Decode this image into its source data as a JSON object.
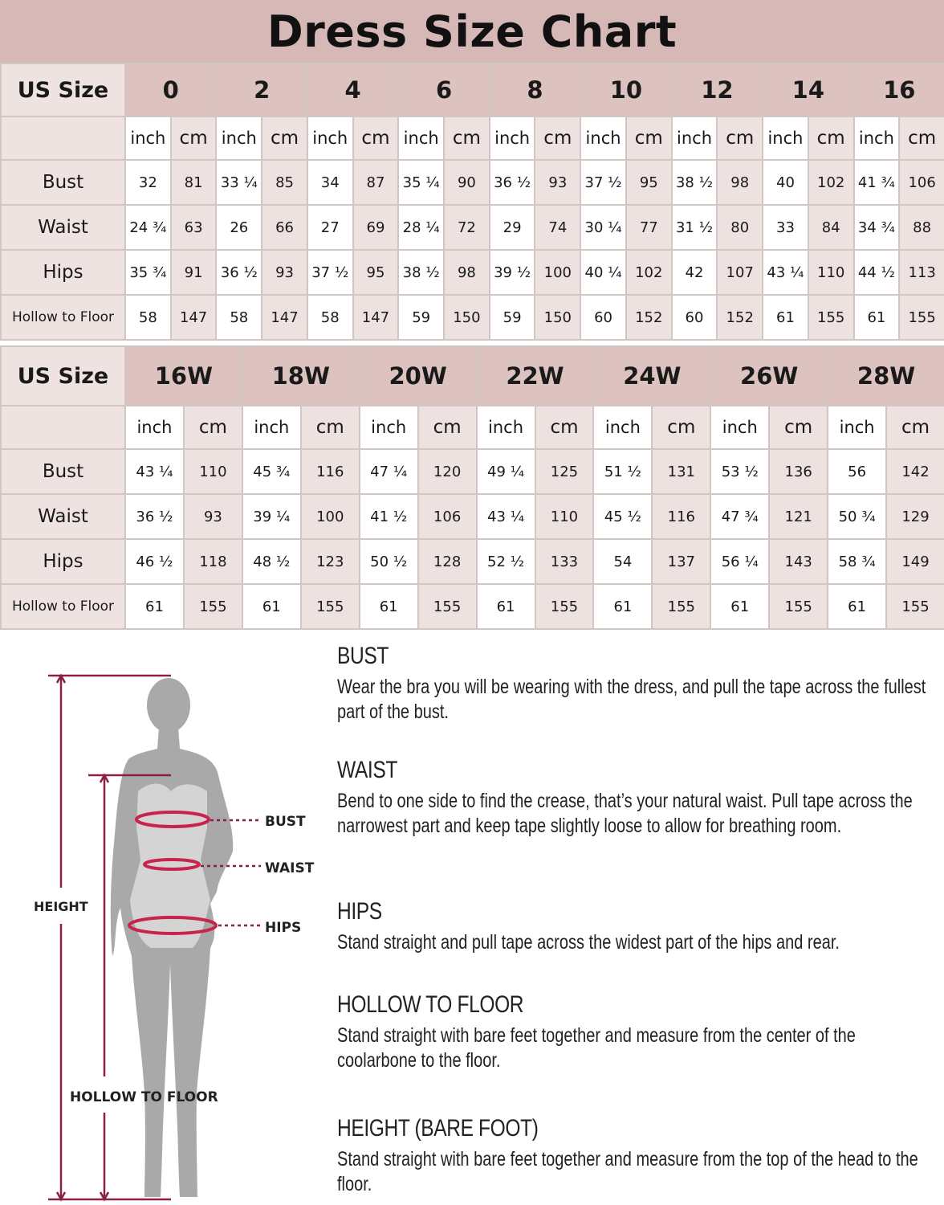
{
  "title": "Dress Size Chart",
  "colors": {
    "header": "#dcc3c0",
    "title_bar": "#d6b9b6",
    "cm_column": "#ede2e0",
    "measure_line": "#8b1f45",
    "tape": "#c8234f",
    "silhouette": "#a9a9a9"
  },
  "tables": [
    {
      "header_label": "US Size",
      "sizes": [
        "0",
        "2",
        "4",
        "6",
        "8",
        "10",
        "12",
        "14",
        "16"
      ],
      "unit_labels": [
        "inch",
        "cm"
      ],
      "rows": [
        {
          "label": "Bust",
          "values": [
            "32",
            "81",
            "33 ¼",
            "85",
            "34",
            "87",
            "35 ¼",
            "90",
            "36 ½",
            "93",
            "37 ½",
            "95",
            "38 ½",
            "98",
            "40",
            "102",
            "41 ¾",
            "106"
          ]
        },
        {
          "label": "Waist",
          "values": [
            "24 ¾",
            "63",
            "26",
            "66",
            "27",
            "69",
            "28 ¼",
            "72",
            "29",
            "74",
            "30 ¼",
            "77",
            "31 ½",
            "80",
            "33",
            "84",
            "34 ¾",
            "88"
          ]
        },
        {
          "label": "Hips",
          "values": [
            "35 ¾",
            "91",
            "36 ½",
            "93",
            "37 ½",
            "95",
            "38 ½",
            "98",
            "39 ½",
            "100",
            "40 ¼",
            "102",
            "42",
            "107",
            "43 ¼",
            "110",
            "44 ½",
            "113"
          ]
        },
        {
          "label": "Hollow to Floor",
          "values": [
            "58",
            "147",
            "58",
            "147",
            "58",
            "147",
            "59",
            "150",
            "59",
            "150",
            "60",
            "152",
            "60",
            "152",
            "61",
            "155",
            "61",
            "155"
          ]
        }
      ]
    },
    {
      "header_label": "US Size",
      "sizes": [
        "16W",
        "18W",
        "20W",
        "22W",
        "24W",
        "26W",
        "28W"
      ],
      "unit_labels": [
        "inch",
        "cm"
      ],
      "rows": [
        {
          "label": "Bust",
          "values": [
            "43 ¼",
            "110",
            "45 ¾",
            "116",
            "47 ¼",
            "120",
            "49 ¼",
            "125",
            "51 ½",
            "131",
            "53 ½",
            "136",
            "56",
            "142"
          ]
        },
        {
          "label": "Waist",
          "values": [
            "36 ½",
            "93",
            "39 ¼",
            "100",
            "41 ½",
            "106",
            "43 ¼",
            "110",
            "45 ½",
            "116",
            "47 ¾",
            "121",
            "50 ¾",
            "129"
          ]
        },
        {
          "label": "Hips",
          "values": [
            "46 ½",
            "118",
            "48 ½",
            "123",
            "50 ½",
            "128",
            "52 ½",
            "133",
            "54",
            "137",
            "56 ¼",
            "143",
            "58 ¾",
            "149"
          ]
        },
        {
          "label": "Hollow to Floor",
          "values": [
            "61",
            "155",
            "61",
            "155",
            "61",
            "155",
            "61",
            "155",
            "61",
            "155",
            "61",
            "155",
            "61",
            "155"
          ]
        }
      ]
    }
  ],
  "figure": {
    "labels": {
      "bust": "BUST",
      "waist": "WAIST",
      "hips": "HIPS",
      "height": "HEIGHT",
      "hollow": "HOLLOW TO FLOOR"
    }
  },
  "instructions": [
    {
      "heading": "BUST",
      "text": "Wear the bra you will be wearing with the dress, and pull the tape across the fullest part of the bust."
    },
    {
      "heading": "WAIST",
      "text": "Bend to one side to find the crease, that’s your natural waist. Pull tape across the narrowest part and keep tape slightly loose to allow for breathing room."
    },
    {
      "heading": "HIPS",
      "text": "Stand straight and pull tape across the widest part of the hips and rear."
    },
    {
      "heading": "HOLLOW TO FLOOR",
      "text": "Stand straight with bare feet together and measure from the center of the coolarbone to the floor."
    },
    {
      "heading": "HEIGHT (BARE FOOT)",
      "text": "Stand straight with bare feet together and measure from the top of the head to the floor."
    }
  ]
}
